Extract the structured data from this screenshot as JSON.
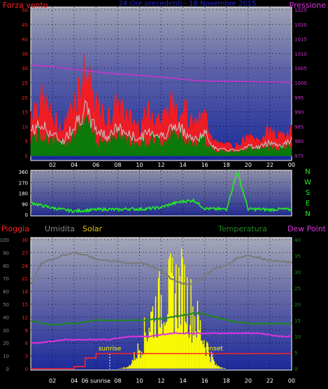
{
  "top_panel": {
    "left_label": "Forza vento",
    "center_label": "24 Ore precedenti - 18 Novembre 2015",
    "right_label": "Pressione"
  },
  "mid_panel": {
    "compass": [
      "N",
      "W",
      "S",
      "E",
      "N"
    ]
  },
  "bottom_panel": {
    "labels": {
      "pioggia": "Pioggia",
      "umidita": "Umidita",
      "solar": "Solar",
      "temperatura": "Temperatura",
      "dewpoint": "Dew Point"
    },
    "sunrise_label": "sunrise",
    "sunset_label": "sunset"
  },
  "x_axis": {
    "hours": [
      "02",
      "04",
      "06",
      "08",
      "10",
      "12",
      "14",
      "16",
      "18",
      "20",
      "22",
      "00"
    ],
    "hours_bottom": [
      "02",
      "04",
      "06 sunrise",
      "08",
      "10",
      "12",
      "14",
      "16",
      "18",
      "20",
      "22",
      "00"
    ]
  },
  "colors": {
    "wind_gust": "#ff1a1a",
    "wind_avg": "#c8c8c8",
    "wind_dir_bar": "#0b7a0b",
    "pressure": "#cc33cc",
    "wind_direction": "#22ee22",
    "humidity": "#7a7a7a",
    "temperature": "#1f8a1f",
    "dewpoint": "#dd33dd",
    "rain": "#ff2020",
    "solar": "#ffff00"
  },
  "chart_data": [
    {
      "type": "line",
      "ylabel_left": "Forza vento",
      "ylabel_right": "Pressione",
      "ylim_left": [
        0,
        50
      ],
      "yticks_left": [
        0,
        5,
        10,
        15,
        20,
        25,
        30,
        35,
        40,
        45,
        50
      ],
      "ylim_right": [
        975,
        1025
      ],
      "yticks_right": [
        975,
        980,
        985,
        990,
        995,
        1000,
        1005,
        1010,
        1015,
        1020,
        1025
      ],
      "x": [
        0,
        1,
        2,
        3,
        4,
        5,
        6,
        7,
        8,
        9,
        10,
        11,
        12,
        13,
        14,
        15,
        16,
        17,
        18,
        19,
        20,
        21,
        22,
        23,
        24
      ],
      "series": [
        {
          "name": "Forza vento",
          "axis": "left",
          "values": [
            18,
            22,
            15,
            10,
            23,
            33,
            19,
            14,
            20,
            15,
            12,
            18,
            14,
            20,
            19,
            11,
            16,
            5,
            4,
            4,
            7,
            6,
            10,
            7,
            11
          ]
        },
        {
          "name": "Pressione",
          "axis": "right",
          "values": [
            1006.0,
            1005.8,
            1005.5,
            1005.0,
            1004.6,
            1004.2,
            1003.8,
            1003.3,
            1003.0,
            1002.8,
            1002.5,
            1002.2,
            1001.9,
            1001.6,
            1001.2,
            1000.8,
            1000.6,
            1000.5,
            1000.5,
            1000.4,
            1000.4,
            1000.3,
            1000.3,
            1000.2,
            1000.1
          ]
        }
      ]
    },
    {
      "type": "line",
      "ylim": [
        0,
        360
      ],
      "yticks": [
        0,
        90,
        180,
        270,
        360
      ],
      "x": [
        0,
        1,
        2,
        3,
        4,
        5,
        6,
        7,
        8,
        9,
        10,
        11,
        12,
        13,
        14,
        15,
        16,
        17,
        18,
        19,
        20,
        21,
        22,
        23,
        24
      ],
      "series": [
        {
          "values": [
            100,
            75,
            55,
            40,
            28,
            35,
            40,
            45,
            40,
            48,
            45,
            50,
            60,
            90,
            110,
            120,
            50,
            45,
            45,
            360,
            45,
            45,
            40,
            45,
            40
          ]
        }
      ]
    },
    {
      "type": "line",
      "ylim_humidity": [
        0,
        100
      ],
      "yticks_humidity": [
        0,
        10,
        20,
        30,
        40,
        50,
        60,
        70,
        80,
        90,
        100
      ],
      "ylim_rain": [
        0,
        30
      ],
      "yticks_rain": [
        0,
        3,
        6,
        9,
        12,
        15,
        18,
        21,
        24,
        27,
        30
      ],
      "ylim_temp": [
        0,
        40
      ],
      "yticks_temp": [
        0,
        5,
        10,
        15,
        20,
        25,
        30,
        35,
        40
      ],
      "x": [
        0,
        1,
        2,
        3,
        4,
        5,
        6,
        7,
        8,
        9,
        10,
        11,
        12,
        13,
        14,
        15,
        16,
        17,
        18,
        19,
        20,
        21,
        22,
        23,
        24
      ],
      "series": [
        {
          "name": "Umidita",
          "axis": "humidity",
          "values": [
            65,
            82,
            85,
            88,
            90,
            88,
            85,
            84,
            83,
            82,
            82,
            80,
            76,
            69,
            66,
            66,
            72,
            78,
            80,
            86,
            88,
            86,
            84,
            83,
            82
          ]
        },
        {
          "name": "Temperatura",
          "axis": "temp",
          "values": [
            15,
            14,
            13.5,
            14,
            14,
            14.5,
            15,
            15,
            15,
            15,
            15,
            15.2,
            15.5,
            16,
            16.5,
            17.2,
            17,
            16,
            15,
            14.5,
            14,
            14,
            14,
            14,
            14
          ]
        },
        {
          "name": "Dew Point",
          "axis": "temp",
          "values": [
            8,
            8,
            8.5,
            9,
            9,
            9,
            9,
            9,
            9.5,
            10,
            10,
            10,
            10.5,
            11,
            11,
            11,
            11,
            11,
            11,
            11,
            11,
            11,
            10.5,
            10,
            10
          ]
        },
        {
          "name": "Pioggia",
          "axis": "rain",
          "values": [
            0,
            0,
            0,
            0,
            0.5,
            2.5,
            3.5,
            3.5,
            3.5,
            3.5,
            3.5,
            3.5,
            3.5,
            3.5,
            3.5,
            3.5,
            3.5,
            3.5,
            3.5,
            3.5,
            3.5,
            3.5,
            3.5,
            3.5,
            3.5
          ]
        },
        {
          "name": "Solar",
          "axis": "rain",
          "values": [
            0,
            0,
            0,
            0,
            0,
            0,
            0,
            0,
            0,
            0.5,
            6,
            14,
            20,
            22,
            23,
            16,
            8,
            1,
            0,
            0,
            0,
            0,
            0,
            0,
            0
          ]
        }
      ]
    }
  ]
}
